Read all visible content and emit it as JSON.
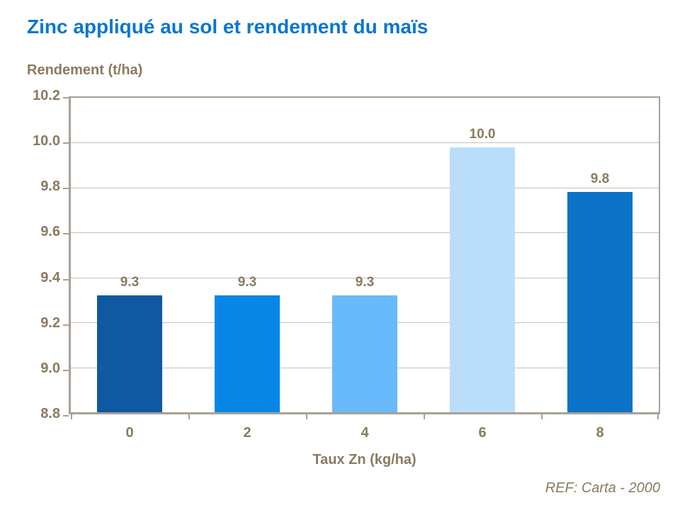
{
  "chart_data": {
    "type": "bar",
    "title": "Zinc appliqué au sol et rendement du maïs",
    "ylabel": "Rendement (t/ha)",
    "xlabel": "Taux Zn (kg/ha)",
    "footnote": "REF: Carta - 2000",
    "categories": [
      "0",
      "2",
      "4",
      "6",
      "8"
    ],
    "values": [
      9.32,
      9.32,
      9.32,
      9.98,
      9.78
    ],
    "value_labels": [
      "9.3",
      "9.3",
      "9.3",
      "10.0",
      "9.8"
    ],
    "bar_colors": [
      "#0E59A2",
      "#0886E8",
      "#68BAFA",
      "#BADEFA",
      "#0B73C7"
    ],
    "ylim": [
      8.8,
      10.2
    ],
    "ytick_step": 0.2,
    "ytick_labels": [
      "10.2",
      "10.0",
      "9.8",
      "9.6",
      "9.4",
      "9.2",
      "9.0",
      "8.8"
    ],
    "grid": true,
    "legend": "none"
  },
  "colors": {
    "title_text": "#0B76D1",
    "axis_text": "#8A7A5F",
    "grid_line": "#C2C2C2",
    "axis_line": "#AAA096",
    "background": "#FFFFFF"
  }
}
